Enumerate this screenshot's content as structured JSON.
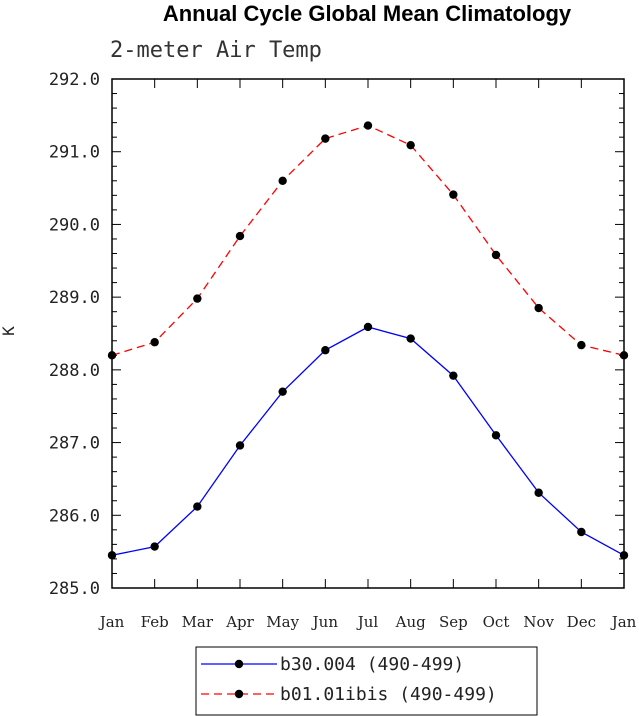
{
  "chart_data": {
    "type": "line",
    "title": "Annual Cycle Global Mean Climatology",
    "subtitle": "2-meter Air Temp",
    "ylabel": "K",
    "xlabel": "",
    "categories": [
      "Jan",
      "Feb",
      "Mar",
      "Apr",
      "May",
      "Jun",
      "Jul",
      "Aug",
      "Sep",
      "Oct",
      "Nov",
      "Dec",
      "Jan"
    ],
    "ylim": [
      285.0,
      292.0
    ],
    "yticks": [
      "285.0",
      "286.0",
      "287.0",
      "288.0",
      "289.0",
      "290.0",
      "291.0",
      "292.0"
    ],
    "series": [
      {
        "name": "b30.004 (490-499)",
        "color": "#0000ff",
        "dash": "solid",
        "values": [
          285.45,
          285.57,
          286.12,
          286.96,
          287.7,
          288.27,
          288.59,
          288.43,
          287.92,
          287.1,
          286.31,
          285.77,
          285.45
        ]
      },
      {
        "name": "b01.01ibis (490-499)",
        "color": "#ff0000",
        "dash": "dashed",
        "values": [
          288.2,
          288.38,
          288.98,
          289.84,
          290.6,
          291.18,
          291.36,
          291.09,
          290.41,
          289.58,
          288.85,
          288.34,
          288.2
        ]
      }
    ],
    "grid": false,
    "legend": "bottom"
  }
}
